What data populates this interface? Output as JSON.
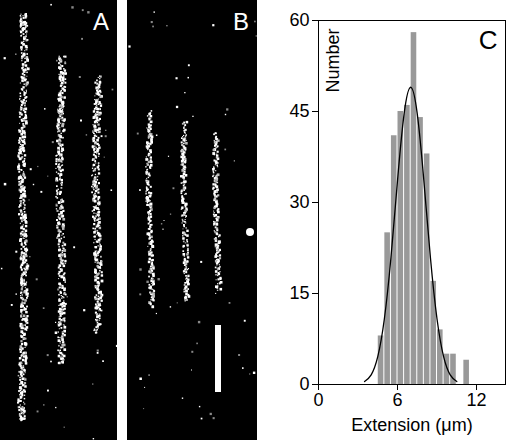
{
  "images": [
    {
      "label": "A"
    },
    {
      "label": "B"
    }
  ],
  "chart_data": {
    "type": "histogram",
    "annotations": [
      "C"
    ],
    "xlabel": "Extension (μm)",
    "ylabel": "Number",
    "bins": [
      4.5,
      5.0,
      5.5,
      6.0,
      6.5,
      7.0,
      7.5,
      8.0,
      8.5,
      9.0,
      9.5,
      10.0,
      10.5,
      11.0,
      11.5
    ],
    "values": [
      8,
      25,
      41,
      45,
      46,
      58,
      44,
      38,
      17,
      9,
      5,
      5,
      0,
      4
    ],
    "color": "#999999",
    "xlim": [
      0,
      14.2
    ],
    "ylim": [
      0,
      60
    ],
    "xticks": [
      0,
      6,
      12
    ],
    "yticks": [
      0,
      15,
      30,
      45,
      60
    ],
    "series": [
      {
        "type": "line",
        "color": "#000000",
        "x": [
          3.5,
          4.0,
          4.5,
          5.0,
          5.5,
          6.0,
          6.5,
          7.0,
          7.5,
          8.0,
          8.5,
          9.0,
          9.5,
          10.0,
          10.5
        ],
        "values": [
          0.48,
          1.6,
          4.6,
          10.8,
          20.9,
          33.6,
          44.6,
          49,
          44.6,
          33.6,
          20.9,
          10.8,
          4.6,
          1.6,
          0.48
        ]
      }
    ]
  }
}
